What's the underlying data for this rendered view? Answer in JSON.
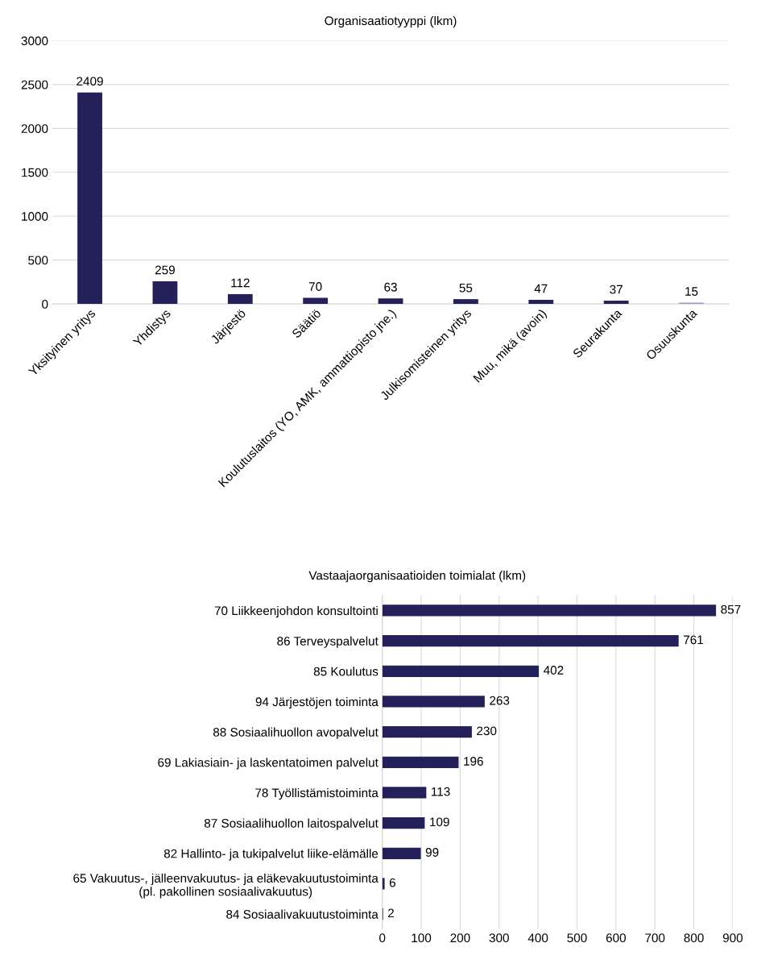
{
  "chart_data": [
    {
      "type": "bar",
      "title": "Organisaatiotyyppi (lkm)",
      "categories": [
        "Yksityinen yritys",
        "Yhdistys",
        "Järjestö",
        "Säätiö",
        "Koulutuslaitos (YO, AMK, ammattiopisto jne.)",
        "Julkisomisteinen yritys",
        "Muu, mikä (avoin)",
        "Seurakunta",
        "Osuuskunta"
      ],
      "values": [
        2409,
        259,
        112,
        70,
        63,
        55,
        47,
        37,
        15
      ],
      "colors": [
        "#24215a",
        "#24215a",
        "#24215a",
        "#24215a",
        "#24215a",
        "#24215a",
        "#24215a",
        "#24215a",
        "#9c98cc"
      ],
      "ylim": [
        0,
        3000
      ],
      "yticks": [
        0,
        500,
        1000,
        1500,
        2000,
        2500,
        3000
      ],
      "grid": "y",
      "data_labels": true
    },
    {
      "type": "bar",
      "orientation": "horizontal",
      "title": "Vastaajaorganisaatioiden toimialat (lkm)",
      "categories": [
        "70 Liikkeenjohdon konsultointi",
        "86 Terveyspalvelut",
        "85 Koulutus",
        "94 Järjestöjen toiminta",
        "88 Sosiaalihuollon avopalvelut",
        "69 Lakiasiain- ja laskentatoimen palvelut",
        "78 Työllistämistoiminta",
        "87 Sosiaalihuollon laitospalvelut",
        "82 Hallinto- ja tukipalvelut liike-elämälle",
        "65 Vakuutus-, jälleenvakuutus- ja eläkevakuutustoiminta\n(pl. pakollinen sosiaalivakuutus)",
        "84 Sosiaalivakuutustoiminta"
      ],
      "values": [
        857,
        761,
        402,
        263,
        230,
        196,
        113,
        109,
        99,
        6,
        2
      ],
      "color": "#24215a",
      "xlim": [
        0,
        900
      ],
      "xticks": [
        0,
        100,
        200,
        300,
        400,
        500,
        600,
        700,
        800,
        900
      ],
      "grid": "x",
      "data_labels": true
    }
  ]
}
